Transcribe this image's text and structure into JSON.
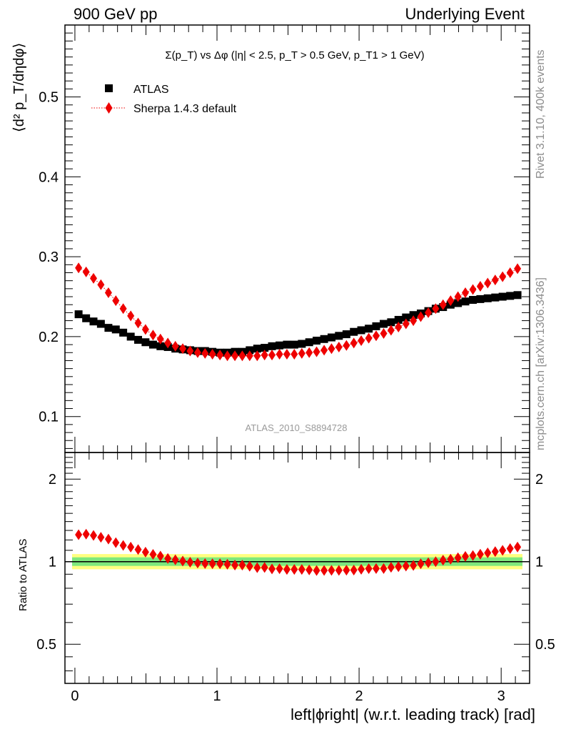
{
  "header": {
    "left": "900 GeV pp",
    "right": "Underlying Event"
  },
  "side_labels": {
    "rivet": "Rivet 3.1.10,  400k events",
    "mcplots": "mcplots.cern.ch [arXiv:1306.3436]"
  },
  "chart_data": [
    {
      "type": "scatter",
      "title": "Σ(p_T) vs Δφ (|η| < 2.5, p_T > 0.5 GeV, p_T1 > 1 GeV)",
      "ylabel": "⟨d² p_T/dηdφ⟩",
      "watermark": "ATLAS_2010_S8894728",
      "xlim": [
        -0.07,
        3.2
      ],
      "ylim": [
        0.055,
        0.59
      ],
      "yticks": [
        0.1,
        0.2,
        0.3,
        0.4,
        0.5
      ],
      "legend_position": "top-left",
      "grid": false,
      "x": [
        0.026,
        0.079,
        0.131,
        0.183,
        0.236,
        0.288,
        0.34,
        0.393,
        0.445,
        0.497,
        0.55,
        0.602,
        0.654,
        0.707,
        0.759,
        0.811,
        0.864,
        0.916,
        0.968,
        1.021,
        1.073,
        1.126,
        1.178,
        1.23,
        1.283,
        1.335,
        1.387,
        1.44,
        1.492,
        1.544,
        1.597,
        1.649,
        1.701,
        1.754,
        1.806,
        1.858,
        1.911,
        1.963,
        2.015,
        2.068,
        2.12,
        2.173,
        2.225,
        2.277,
        2.33,
        2.382,
        2.434,
        2.487,
        2.539,
        2.591,
        2.644,
        2.696,
        2.748,
        2.801,
        2.853,
        2.905,
        2.958,
        3.01,
        3.063,
        3.115
      ],
      "series": [
        {
          "name": "ATLAS",
          "color": "#000000",
          "marker": "square",
          "values": [
            0.228,
            0.223,
            0.219,
            0.216,
            0.211,
            0.209,
            0.205,
            0.2,
            0.196,
            0.193,
            0.19,
            0.188,
            0.187,
            0.185,
            0.184,
            0.183,
            0.182,
            0.182,
            0.181,
            0.18,
            0.18,
            0.181,
            0.181,
            0.183,
            0.185,
            0.186,
            0.188,
            0.189,
            0.19,
            0.19,
            0.191,
            0.193,
            0.195,
            0.197,
            0.199,
            0.201,
            0.203,
            0.206,
            0.208,
            0.21,
            0.213,
            0.216,
            0.218,
            0.221,
            0.224,
            0.227,
            0.229,
            0.232,
            0.235,
            0.237,
            0.24,
            0.242,
            0.244,
            0.246,
            0.247,
            0.248,
            0.249,
            0.25,
            0.251,
            0.252
          ]
        },
        {
          "name": "Sherpa 1.4.3 default",
          "color": "#ee0000",
          "marker": "diamond",
          "line": "dotted",
          "values": [
            0.286,
            0.281,
            0.273,
            0.265,
            0.255,
            0.245,
            0.235,
            0.226,
            0.217,
            0.209,
            0.202,
            0.197,
            0.192,
            0.188,
            0.185,
            0.182,
            0.18,
            0.179,
            0.178,
            0.177,
            0.176,
            0.176,
            0.176,
            0.176,
            0.176,
            0.177,
            0.177,
            0.178,
            0.178,
            0.178,
            0.179,
            0.18,
            0.181,
            0.183,
            0.185,
            0.187,
            0.189,
            0.192,
            0.195,
            0.198,
            0.201,
            0.204,
            0.208,
            0.212,
            0.216,
            0.22,
            0.225,
            0.23,
            0.235,
            0.24,
            0.245,
            0.25,
            0.255,
            0.259,
            0.263,
            0.267,
            0.271,
            0.275,
            0.28,
            0.285
          ]
        }
      ]
    },
    {
      "type": "scatter",
      "ylabel": "Ratio to ATLAS",
      "xlabel": "left|ϕright| (w.r.t. leading track) [rad]",
      "xlim": [
        -0.07,
        3.2
      ],
      "ylim": [
        0.36,
        2.5
      ],
      "log_y": true,
      "yticks": [
        0.5,
        1,
        2
      ],
      "xticks": [
        0,
        1,
        2,
        3
      ],
      "reference": 1.0,
      "bands": [
        {
          "color": "#ffff80",
          "low": 0.938,
          "high": 1.066
        },
        {
          "color": "#7de87d",
          "low": 0.965,
          "high": 1.037
        }
      ],
      "series": [
        {
          "name": "Sherpa 1.4.3 default",
          "color": "#ee0000",
          "marker": "diamond",
          "values": [
            1.254,
            1.26,
            1.246,
            1.227,
            1.209,
            1.173,
            1.146,
            1.13,
            1.107,
            1.083,
            1.063,
            1.048,
            1.027,
            1.016,
            1.005,
            0.995,
            0.989,
            0.984,
            0.983,
            0.983,
            0.978,
            0.972,
            0.972,
            0.962,
            0.951,
            0.952,
            0.941,
            0.942,
            0.937,
            0.937,
            0.937,
            0.933,
            0.928,
            0.929,
            0.93,
            0.93,
            0.931,
            0.932,
            0.938,
            0.943,
            0.944,
            0.944,
            0.954,
            0.959,
            0.964,
            0.969,
            0.983,
            0.991,
            1.0,
            1.013,
            1.021,
            1.033,
            1.045,
            1.053,
            1.065,
            1.077,
            1.088,
            1.1,
            1.116,
            1.131
          ]
        }
      ]
    }
  ]
}
